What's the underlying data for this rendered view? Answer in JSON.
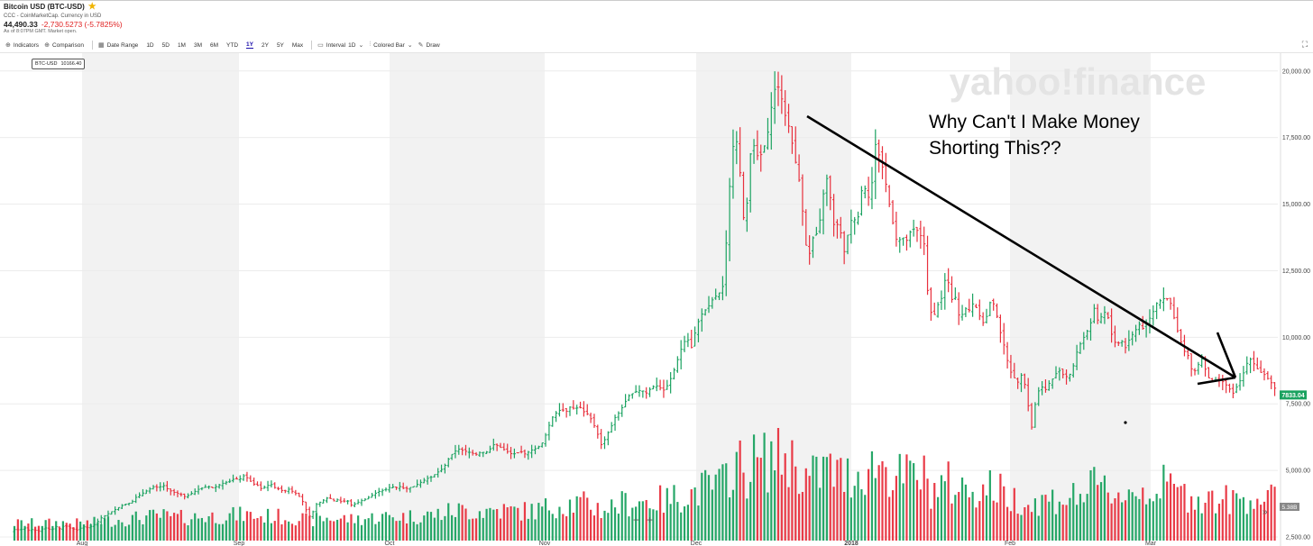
{
  "header": {
    "title": "Bitcoin USD (BTC-USD)",
    "source": "CCC - CoinMarketCap. Currency in USD",
    "price": "44,490.33",
    "change": "-2,730.5273 (-5.7825%)",
    "asof": "As of 8:07PM GMT. Market open."
  },
  "toolbar": {
    "indicators": "Indicators",
    "comparison": "Comparison",
    "date_range": "Date Range",
    "ranges": [
      "1D",
      "5D",
      "1M",
      "3M",
      "6M",
      "YTD",
      "1Y",
      "2Y",
      "5Y",
      "Max"
    ],
    "selected_range": "1Y",
    "interval_label": "Interval",
    "interval_value": "1D",
    "chart_type": "Colored Bar",
    "draw": "Draw"
  },
  "series_tag": {
    "symbol": "BTC-USD",
    "value": "10166.40"
  },
  "watermark": "yahoo!finance",
  "annotation": "Why Can't I Make Money Shorting This??",
  "zoom": {
    "out": "−",
    "in": "+"
  },
  "colors": {
    "up": "#1aa260",
    "down": "#e8303d",
    "shade": "#f2f2f2",
    "price_tag": "#1aa260"
  },
  "chart_data": {
    "type": "bar",
    "subtype": "ohlc-colored-bars",
    "title": "",
    "xlabel": "",
    "ylabel": "",
    "ylim": [
      2500,
      20500
    ],
    "y_ticks": [
      2500,
      5000,
      7500,
      10000,
      12500,
      15000,
      17500,
      20000
    ],
    "y_tick_labels": [
      "2,500.00",
      "5,000.00",
      "7,500.00",
      "10,000.00",
      "12,500.00",
      "15,000.00",
      "17,500.00",
      "20,000.00"
    ],
    "x_tick_labels": [
      "Aug",
      "Sep",
      "Oct",
      "Nov",
      "Dec",
      "2018",
      "Feb",
      "Mar"
    ],
    "last_price_label": "7833.04",
    "volume_label": "5.38B",
    "grid": true,
    "price_path": [
      [
        0,
        2700
      ],
      [
        5,
        2800
      ],
      [
        10,
        2750
      ],
      [
        15,
        2850
      ],
      [
        20,
        2750
      ],
      [
        25,
        2800
      ],
      [
        30,
        2700
      ],
      [
        35,
        2800
      ],
      [
        40,
        2850
      ],
      [
        45,
        2750
      ],
      [
        50,
        2900
      ],
      [
        55,
        2800
      ],
      [
        60,
        2950
      ],
      [
        65,
        2850
      ],
      [
        70,
        2800
      ],
      [
        75,
        2750
      ],
      [
        80,
        2900
      ],
      [
        85,
        2850
      ],
      [
        90,
        2900
      ],
      [
        95,
        3000
      ],
      [
        100,
        3200
      ],
      [
        105,
        3300
      ],
      [
        110,
        3400
      ],
      [
        115,
        3500
      ],
      [
        120,
        3600
      ],
      [
        125,
        3700
      ],
      [
        130,
        3750
      ],
      [
        135,
        3800
      ],
      [
        140,
        4000
      ],
      [
        145,
        4100
      ],
      [
        150,
        4200
      ],
      [
        155,
        4300
      ],
      [
        160,
        4400
      ],
      [
        165,
        4350
      ],
      [
        170,
        4450
      ],
      [
        175,
        4300
      ],
      [
        180,
        4200
      ],
      [
        185,
        4150
      ],
      [
        190,
        4100
      ],
      [
        195,
        4000
      ],
      [
        200,
        4100
      ],
      [
        205,
        4200
      ],
      [
        210,
        4300
      ],
      [
        215,
        4350
      ],
      [
        220,
        4400
      ],
      [
        225,
        4350
      ],
      [
        230,
        4400
      ],
      [
        235,
        4500
      ],
      [
        240,
        4550
      ],
      [
        245,
        4600
      ],
      [
        250,
        4700
      ],
      [
        255,
        4650
      ],
      [
        260,
        4800
      ],
      [
        265,
        4700
      ],
      [
        270,
        4500
      ],
      [
        275,
        4450
      ],
      [
        280,
        4300
      ],
      [
        285,
        4400
      ],
      [
        290,
        4500
      ],
      [
        295,
        4350
      ],
      [
        300,
        4300
      ],
      [
        305,
        4200
      ],
      [
        310,
        4300
      ],
      [
        315,
        4200
      ],
      [
        320,
        4100
      ],
      [
        325,
        3900
      ],
      [
        330,
        3500
      ],
      [
        335,
        3200
      ],
      [
        340,
        3700
      ],
      [
        345,
        3800
      ],
      [
        350,
        3900
      ],
      [
        355,
        4000
      ],
      [
        360,
        3850
      ],
      [
        365,
        3900
      ],
      [
        370,
        3800
      ],
      [
        375,
        3900
      ],
      [
        380,
        3700
      ],
      [
        385,
        3750
      ],
      [
        390,
        3850
      ],
      [
        395,
        3900
      ],
      [
        400,
        4000
      ],
      [
        405,
        4100
      ],
      [
        410,
        4200
      ],
      [
        415,
        4250
      ],
      [
        420,
        4300
      ],
      [
        425,
        4400
      ],
      [
        430,
        4350
      ],
      [
        435,
        4400
      ],
      [
        440,
        4300
      ],
      [
        445,
        4350
      ],
      [
        450,
        4400
      ],
      [
        455,
        4500
      ],
      [
        460,
        4600
      ],
      [
        465,
        4700
      ],
      [
        470,
        4750
      ],
      [
        475,
        4900
      ],
      [
        480,
        5000
      ],
      [
        485,
        5200
      ],
      [
        490,
        5500
      ],
      [
        495,
        5700
      ],
      [
        500,
        5800
      ],
      [
        505,
        5750
      ],
      [
        510,
        5700
      ],
      [
        515,
        5650
      ],
      [
        520,
        5600
      ],
      [
        525,
        5700
      ],
      [
        530,
        5650
      ],
      [
        535,
        5800
      ],
      [
        540,
        6000
      ],
      [
        545,
        5900
      ],
      [
        550,
        5800
      ],
      [
        555,
        5700
      ],
      [
        560,
        5600
      ],
      [
        565,
        5650
      ],
      [
        570,
        5700
      ],
      [
        575,
        5600
      ],
      [
        580,
        5750
      ],
      [
        585,
        5800
      ],
      [
        590,
        5900
      ],
      [
        595,
        6100
      ],
      [
        600,
        6600
      ],
      [
        605,
        7000
      ],
      [
        610,
        7200
      ],
      [
        615,
        7300
      ],
      [
        620,
        7200
      ],
      [
        625,
        7400
      ],
      [
        630,
        7300
      ],
      [
        635,
        7400
      ],
      [
        640,
        7200
      ],
      [
        645,
        7100
      ],
      [
        650,
        6800
      ],
      [
        655,
        6400
      ],
      [
        660,
        5900
      ],
      [
        665,
        6300
      ],
      [
        670,
        6600
      ],
      [
        675,
        7000
      ],
      [
        680,
        7200
      ],
      [
        685,
        7500
      ],
      [
        690,
        7800
      ],
      [
        695,
        7900
      ],
      [
        700,
        8000
      ],
      [
        705,
        8000
      ],
      [
        710,
        7900
      ],
      [
        715,
        8100
      ],
      [
        720,
        8200
      ],
      [
        725,
        8100
      ],
      [
        730,
        8000
      ],
      [
        735,
        8300
      ],
      [
        740,
        8700
      ],
      [
        745,
        9200
      ],
      [
        750,
        9700
      ],
      [
        755,
        10000
      ],
      [
        760,
        9600
      ],
      [
        765,
        10300
      ],
      [
        770,
        10800
      ],
      [
        775,
        11000
      ],
      [
        780,
        11200
      ],
      [
        785,
        11500
      ],
      [
        790,
        11600
      ],
      [
        795,
        11900
      ],
      [
        800,
        14000
      ],
      [
        805,
        17000
      ],
      [
        810,
        17500
      ],
      [
        815,
        16000
      ],
      [
        820,
        13700
      ],
      [
        825,
        16800
      ],
      [
        830,
        17200
      ],
      [
        835,
        16700
      ],
      [
        840,
        17000
      ],
      [
        845,
        17600
      ],
      [
        850,
        18800
      ],
      [
        855,
        19600
      ],
      [
        860,
        19100
      ],
      [
        865,
        18300
      ],
      [
        870,
        17800
      ],
      [
        875,
        16800
      ],
      [
        880,
        16000
      ],
      [
        885,
        14500
      ],
      [
        890,
        12800
      ],
      [
        895,
        13700
      ],
      [
        900,
        13900
      ],
      [
        905,
        14600
      ],
      [
        910,
        16200
      ],
      [
        915,
        15300
      ],
      [
        920,
        14000
      ],
      [
        925,
        14400
      ],
      [
        930,
        13100
      ],
      [
        935,
        13900
      ],
      [
        940,
        14600
      ],
      [
        945,
        14200
      ],
      [
        950,
        15500
      ],
      [
        955,
        15600
      ],
      [
        960,
        15000
      ],
      [
        965,
        17300
      ],
      [
        970,
        16800
      ],
      [
        975,
        16200
      ],
      [
        980,
        15200
      ],
      [
        985,
        14300
      ],
      [
        990,
        13500
      ],
      [
        995,
        13800
      ],
      [
        1000,
        13600
      ],
      [
        1005,
        14000
      ],
      [
        1010,
        14100
      ],
      [
        1015,
        13900
      ],
      [
        1020,
        13500
      ],
      [
        1025,
        11200
      ],
      [
        1030,
        10700
      ],
      [
        1035,
        11200
      ],
      [
        1040,
        11500
      ],
      [
        1045,
        12500
      ],
      [
        1050,
        11400
      ],
      [
        1055,
        11500
      ],
      [
        1060,
        10600
      ],
      [
        1065,
        11100
      ],
      [
        1070,
        11000
      ],
      [
        1075,
        11300
      ],
      [
        1080,
        11000
      ],
      [
        1085,
        10500
      ],
      [
        1090,
        10800
      ],
      [
        1095,
        11500
      ],
      [
        1100,
        11000
      ],
      [
        1105,
        10200
      ],
      [
        1110,
        9600
      ],
      [
        1115,
        8800
      ],
      [
        1120,
        8500
      ],
      [
        1125,
        8300
      ],
      [
        1130,
        8700
      ],
      [
        1135,
        7700
      ],
      [
        1140,
        6600
      ],
      [
        1145,
        7700
      ],
      [
        1150,
        8200
      ],
      [
        1155,
        8000
      ],
      [
        1160,
        8300
      ],
      [
        1165,
        8500
      ],
      [
        1170,
        8800
      ],
      [
        1175,
        8600
      ],
      [
        1180,
        8500
      ],
      [
        1185,
        8700
      ],
      [
        1190,
        9400
      ],
      [
        1195,
        9800
      ],
      [
        1200,
        10100
      ],
      [
        1205,
        10400
      ],
      [
        1210,
        11100
      ],
      [
        1215,
        10500
      ],
      [
        1220,
        11000
      ],
      [
        1225,
        10800
      ],
      [
        1230,
        10000
      ],
      [
        1235,
        9700
      ],
      [
        1240,
        9900
      ],
      [
        1245,
        9600
      ],
      [
        1250,
        10000
      ],
      [
        1255,
        10200
      ],
      [
        1260,
        10500
      ],
      [
        1265,
        10300
      ],
      [
        1270,
        10600
      ],
      [
        1275,
        10900
      ],
      [
        1280,
        11300
      ],
      [
        1285,
        11400
      ],
      [
        1290,
        11500
      ],
      [
        1295,
        11300
      ],
      [
        1300,
        10600
      ],
      [
        1305,
        10000
      ],
      [
        1310,
        9500
      ],
      [
        1315,
        9300
      ],
      [
        1320,
        8600
      ],
      [
        1325,
        8900
      ],
      [
        1330,
        9200
      ],
      [
        1335,
        8700
      ],
      [
        1340,
        8300
      ],
      [
        1345,
        8400
      ],
      [
        1350,
        8400
      ],
      [
        1355,
        8300
      ],
      [
        1360,
        8100
      ],
      [
        1365,
        7900
      ],
      [
        1370,
        8200
      ],
      [
        1375,
        8500
      ],
      [
        1380,
        9000
      ],
      [
        1385,
        9200
      ],
      [
        1390,
        8900
      ],
      [
        1395,
        8700
      ],
      [
        1400,
        8600
      ],
      [
        1405,
        8400
      ],
      [
        1410,
        8200
      ],
      [
        1415,
        7833
      ]
    ]
  }
}
